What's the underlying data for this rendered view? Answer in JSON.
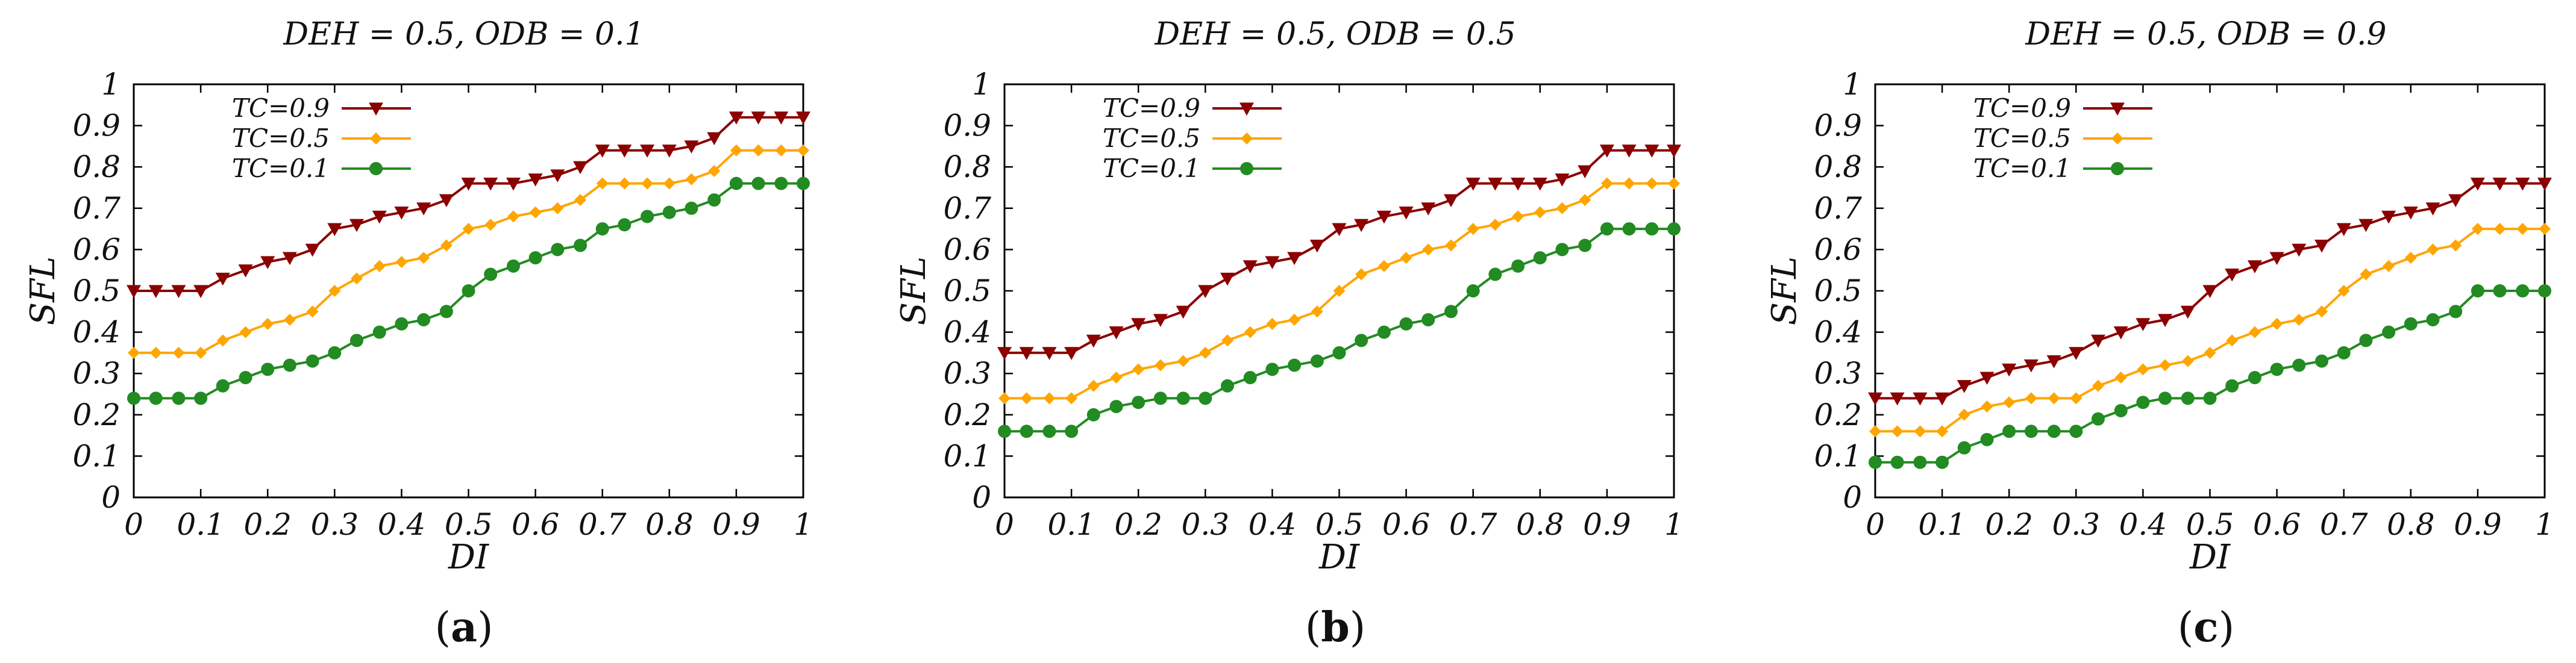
{
  "chart_data": [
    {
      "type": "line",
      "title": "DEH = 0.5, ODB = 0.1",
      "caption": "a",
      "xlabel": "DI",
      "ylabel": "SFL",
      "xlim": [
        0,
        1
      ],
      "ylim": [
        0,
        1
      ],
      "xticks": [
        "0",
        "0.1",
        "0.2",
        "0.3",
        "0.4",
        "0.5",
        "0.6",
        "0.7",
        "0.8",
        "0.9",
        "1"
      ],
      "yticks": [
        "0",
        "0.1",
        "0.2",
        "0.3",
        "0.4",
        "0.5",
        "0.6",
        "0.7",
        "0.8",
        "0.9",
        "1"
      ],
      "x": [
        0,
        0.033,
        0.067,
        0.1,
        0.133,
        0.167,
        0.2,
        0.233,
        0.267,
        0.3,
        0.333,
        0.367,
        0.4,
        0.433,
        0.467,
        0.5,
        0.533,
        0.567,
        0.6,
        0.633,
        0.667,
        0.7,
        0.733,
        0.767,
        0.8,
        0.833,
        0.867,
        0.9,
        0.933,
        0.967,
        1
      ],
      "series": [
        {
          "name": "TC=0.9",
          "color": "#8b0000",
          "marker": "triangle-down",
          "values": [
            0.5,
            0.5,
            0.5,
            0.5,
            0.53,
            0.55,
            0.57,
            0.58,
            0.6,
            0.65,
            0.66,
            0.68,
            0.69,
            0.7,
            0.72,
            0.76,
            0.76,
            0.76,
            0.77,
            0.78,
            0.8,
            0.84,
            0.84,
            0.84,
            0.84,
            0.85,
            0.87,
            0.92,
            0.92,
            0.92,
            0.92
          ]
        },
        {
          "name": "TC=0.5",
          "color": "#ffa500",
          "marker": "diamond",
          "values": [
            0.35,
            0.35,
            0.35,
            0.35,
            0.38,
            0.4,
            0.42,
            0.43,
            0.45,
            0.5,
            0.53,
            0.56,
            0.57,
            0.58,
            0.61,
            0.65,
            0.66,
            0.68,
            0.69,
            0.7,
            0.72,
            0.76,
            0.76,
            0.76,
            0.76,
            0.77,
            0.79,
            0.84,
            0.84,
            0.84,
            0.84
          ]
        },
        {
          "name": "TC=0.1",
          "color": "#228b22",
          "marker": "circle",
          "values": [
            0.24,
            0.24,
            0.24,
            0.24,
            0.27,
            0.29,
            0.31,
            0.32,
            0.33,
            0.35,
            0.38,
            0.4,
            0.42,
            0.43,
            0.45,
            0.5,
            0.54,
            0.56,
            0.58,
            0.6,
            0.61,
            0.65,
            0.66,
            0.68,
            0.69,
            0.7,
            0.72,
            0.76,
            0.76,
            0.76,
            0.76
          ]
        }
      ]
    },
    {
      "type": "line",
      "title": "DEH = 0.5, ODB = 0.5",
      "caption": "b",
      "xlabel": "DI",
      "ylabel": "SFL",
      "xlim": [
        0,
        1
      ],
      "ylim": [
        0,
        1
      ],
      "xticks": [
        "0",
        "0.1",
        "0.2",
        "0.3",
        "0.4",
        "0.5",
        "0.6",
        "0.7",
        "0.8",
        "0.9",
        "1"
      ],
      "yticks": [
        "0",
        "0.1",
        "0.2",
        "0.3",
        "0.4",
        "0.5",
        "0.6",
        "0.7",
        "0.8",
        "0.9",
        "1"
      ],
      "x": [
        0,
        0.033,
        0.067,
        0.1,
        0.133,
        0.167,
        0.2,
        0.233,
        0.267,
        0.3,
        0.333,
        0.367,
        0.4,
        0.433,
        0.467,
        0.5,
        0.533,
        0.567,
        0.6,
        0.633,
        0.667,
        0.7,
        0.733,
        0.767,
        0.8,
        0.833,
        0.867,
        0.9,
        0.933,
        0.967,
        1
      ],
      "series": [
        {
          "name": "TC=0.9",
          "color": "#8b0000",
          "marker": "triangle-down",
          "values": [
            0.35,
            0.35,
            0.35,
            0.35,
            0.38,
            0.4,
            0.42,
            0.43,
            0.45,
            0.5,
            0.53,
            0.56,
            0.57,
            0.58,
            0.61,
            0.65,
            0.66,
            0.68,
            0.69,
            0.7,
            0.72,
            0.76,
            0.76,
            0.76,
            0.76,
            0.77,
            0.79,
            0.84,
            0.84,
            0.84,
            0.84
          ]
        },
        {
          "name": "TC=0.5",
          "color": "#ffa500",
          "marker": "diamond",
          "values": [
            0.24,
            0.24,
            0.24,
            0.24,
            0.27,
            0.29,
            0.31,
            0.32,
            0.33,
            0.35,
            0.38,
            0.4,
            0.42,
            0.43,
            0.45,
            0.5,
            0.54,
            0.56,
            0.58,
            0.6,
            0.61,
            0.65,
            0.66,
            0.68,
            0.69,
            0.7,
            0.72,
            0.76,
            0.76,
            0.76,
            0.76
          ]
        },
        {
          "name": "TC=0.1",
          "color": "#228b22",
          "marker": "circle",
          "values": [
            0.16,
            0.16,
            0.16,
            0.16,
            0.2,
            0.22,
            0.23,
            0.24,
            0.24,
            0.24,
            0.27,
            0.29,
            0.31,
            0.32,
            0.33,
            0.35,
            0.38,
            0.4,
            0.42,
            0.43,
            0.45,
            0.5,
            0.54,
            0.56,
            0.58,
            0.6,
            0.61,
            0.65,
            0.65,
            0.65,
            0.65
          ]
        }
      ]
    },
    {
      "type": "line",
      "title": "DEH = 0.5, ODB = 0.9",
      "caption": "c",
      "xlabel": "DI",
      "ylabel": "SFL",
      "xlim": [
        0,
        1
      ],
      "ylim": [
        0,
        1
      ],
      "xticks": [
        "0",
        "0.1",
        "0.2",
        "0.3",
        "0.4",
        "0.5",
        "0.6",
        "0.7",
        "0.8",
        "0.9",
        "1"
      ],
      "yticks": [
        "0",
        "0.1",
        "0.2",
        "0.3",
        "0.4",
        "0.5",
        "0.6",
        "0.7",
        "0.8",
        "0.9",
        "1"
      ],
      "x": [
        0,
        0.033,
        0.067,
        0.1,
        0.133,
        0.167,
        0.2,
        0.233,
        0.267,
        0.3,
        0.333,
        0.367,
        0.4,
        0.433,
        0.467,
        0.5,
        0.533,
        0.567,
        0.6,
        0.633,
        0.667,
        0.7,
        0.733,
        0.767,
        0.8,
        0.833,
        0.867,
        0.9,
        0.933,
        0.967,
        1
      ],
      "series": [
        {
          "name": "TC=0.9",
          "color": "#8b0000",
          "marker": "triangle-down",
          "values": [
            0.24,
            0.24,
            0.24,
            0.24,
            0.27,
            0.29,
            0.31,
            0.32,
            0.33,
            0.35,
            0.38,
            0.4,
            0.42,
            0.43,
            0.45,
            0.5,
            0.54,
            0.56,
            0.58,
            0.6,
            0.61,
            0.65,
            0.66,
            0.68,
            0.69,
            0.7,
            0.72,
            0.76,
            0.76,
            0.76,
            0.76
          ]
        },
        {
          "name": "TC=0.5",
          "color": "#ffa500",
          "marker": "diamond",
          "values": [
            0.16,
            0.16,
            0.16,
            0.16,
            0.2,
            0.22,
            0.23,
            0.24,
            0.24,
            0.24,
            0.27,
            0.29,
            0.31,
            0.32,
            0.33,
            0.35,
            0.38,
            0.4,
            0.42,
            0.43,
            0.45,
            0.5,
            0.54,
            0.56,
            0.58,
            0.6,
            0.61,
            0.65,
            0.65,
            0.65,
            0.65
          ]
        },
        {
          "name": "TC=0.1",
          "color": "#228b22",
          "marker": "circle",
          "values": [
            0.085,
            0.085,
            0.085,
            0.085,
            0.12,
            0.14,
            0.16,
            0.16,
            0.16,
            0.16,
            0.19,
            0.21,
            0.23,
            0.24,
            0.24,
            0.24,
            0.27,
            0.29,
            0.31,
            0.32,
            0.33,
            0.35,
            0.38,
            0.4,
            0.42,
            0.43,
            0.45,
            0.5,
            0.5,
            0.5,
            0.5
          ]
        }
      ]
    }
  ]
}
